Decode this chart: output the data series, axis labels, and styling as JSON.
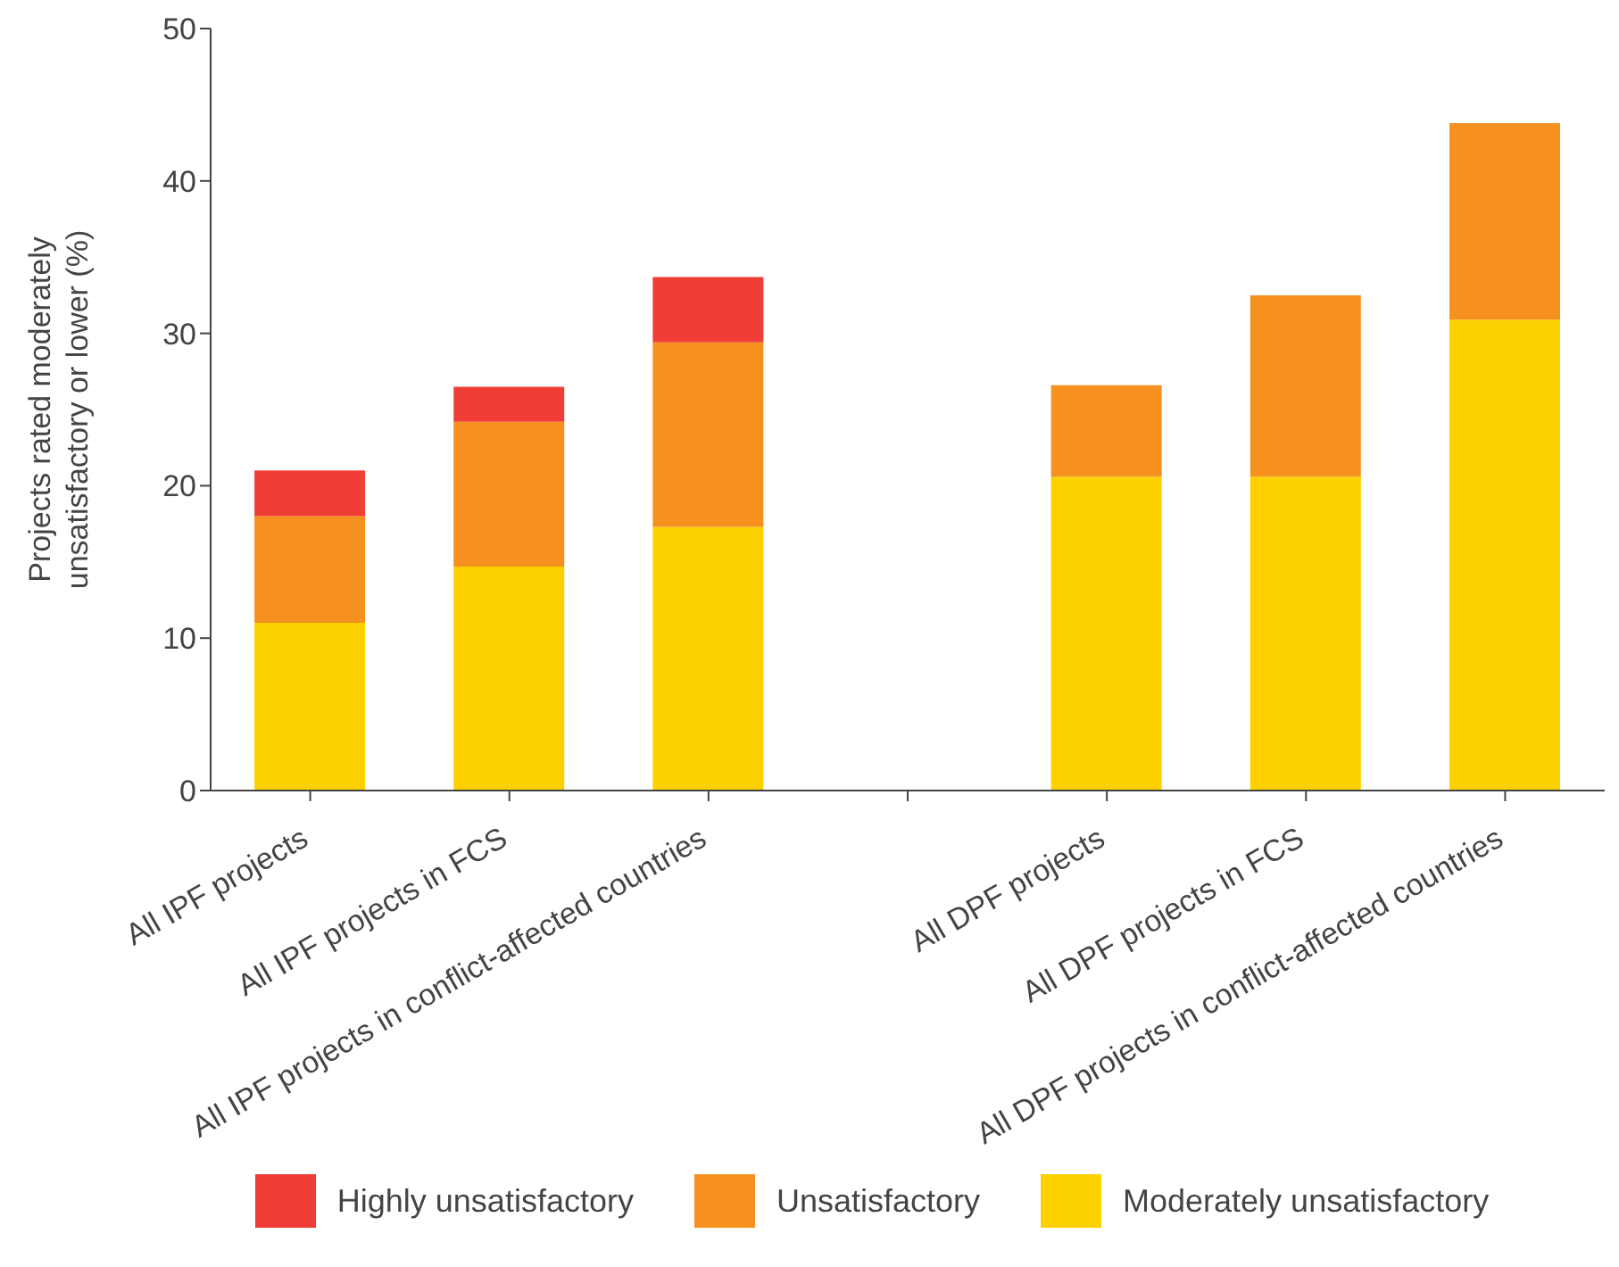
{
  "chart_data": {
    "type": "bar",
    "stacked": true,
    "ylabel": "Projects rated moderately unsatisfactory or lower (%)",
    "categories": [
      "All IPF projects",
      "All IPF projects in FCS",
      "All IPF projects in conflict-affected countries",
      null,
      "All DPF projects",
      "All DPF projects in FCS",
      "All DPF projects in conflict-affected countries"
    ],
    "series": [
      {
        "name": "Moderately unsatisfactory",
        "color": "#fdd000",
        "values": [
          11,
          14.7,
          17.3,
          null,
          20.6,
          20.6,
          30.9
        ]
      },
      {
        "name": "Unsatisfactory",
        "color": "#f6901e",
        "values": [
          7,
          9.5,
          12.1,
          null,
          6,
          11.9,
          12.9
        ]
      },
      {
        "name": "Highly unsatisfactory",
        "color": "#ef3e36",
        "values": [
          3,
          2.3,
          4.3,
          null,
          null,
          null,
          null
        ]
      }
    ],
    "ylim": [
      0,
      50
    ],
    "yticks": [
      0,
      10,
      20,
      30,
      40,
      50
    ],
    "grid": false,
    "legend": "bottom"
  }
}
